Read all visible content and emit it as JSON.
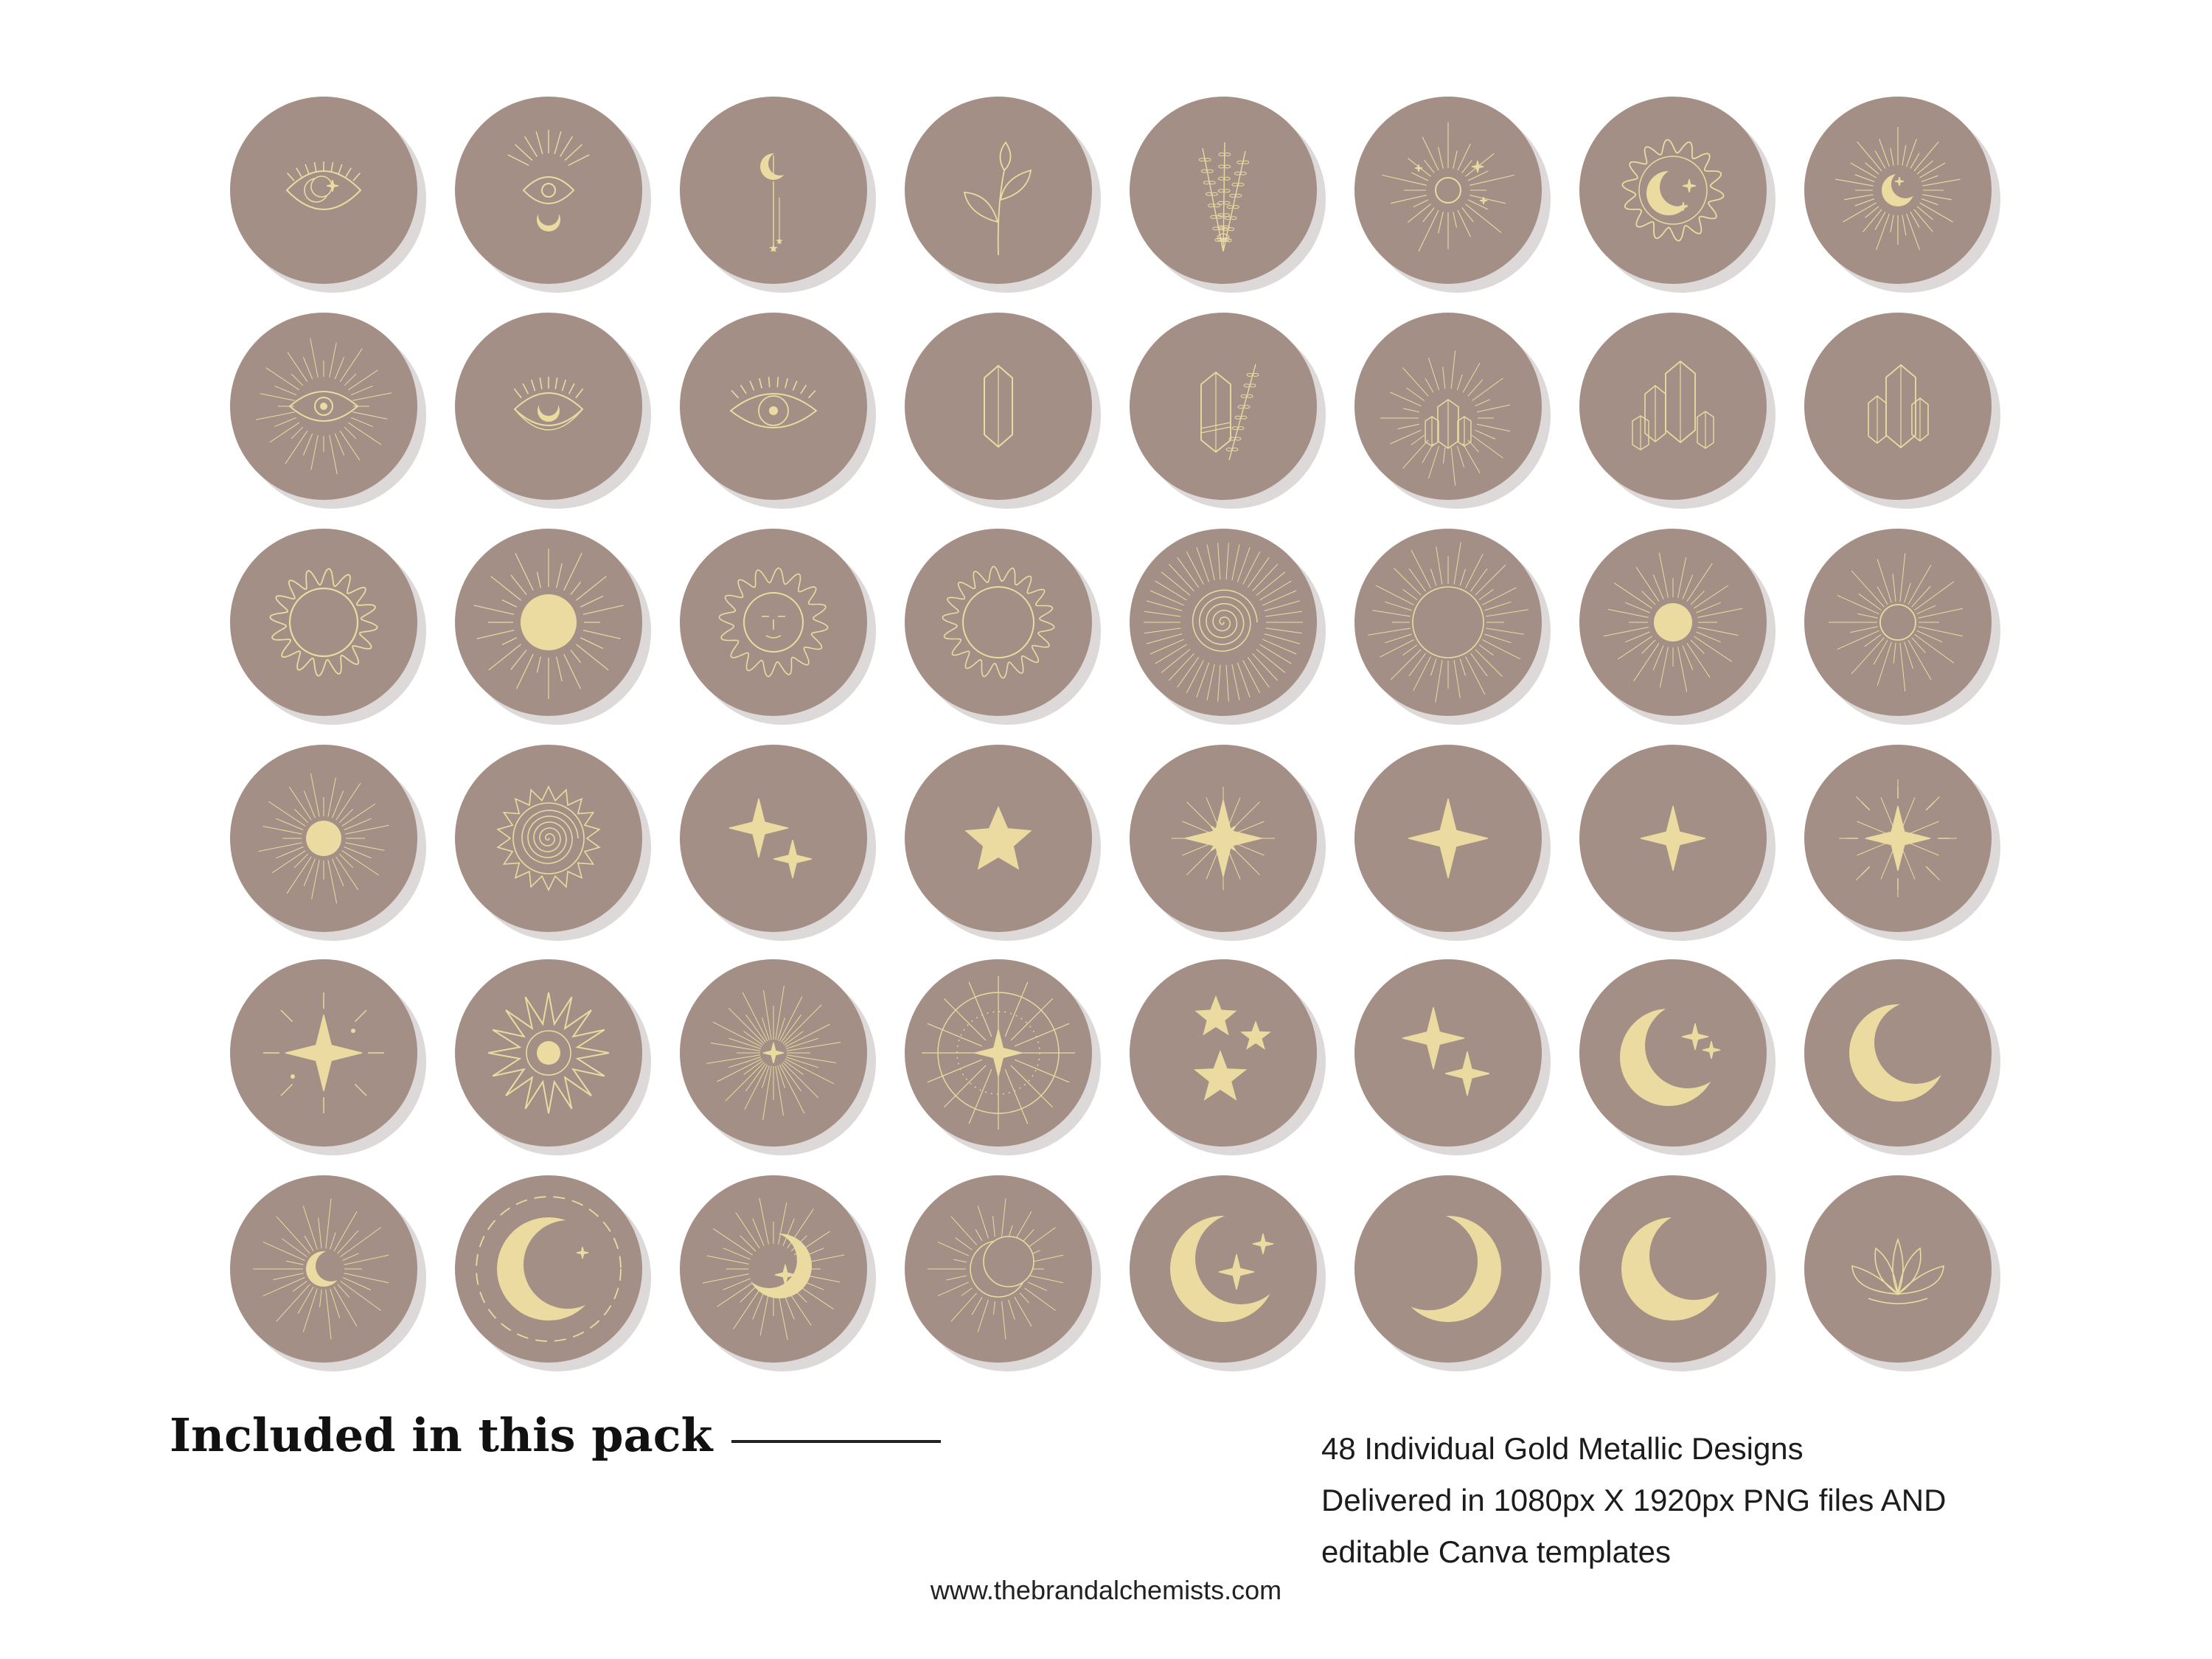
{
  "colors": {
    "badge": "#a48f86",
    "shadow": "#dcd9d8",
    "gold": "#ecdba0",
    "text": "#111111",
    "background": "#ffffff"
  },
  "icons": [
    "eye-crescent-icon",
    "eye-crown-rays-icon",
    "hanging-crescent-icon",
    "sprout-icon",
    "lavender-bundle-icon",
    "rayed-sun-stars-icon",
    "flaming-sun-crescent-icon",
    "rayed-crescent-icon",
    "rayed-eye-icon",
    "eye-crescent-pupil-icon",
    "eye-lashes-icon",
    "single-crystal-icon",
    "crystal-lavender-icon",
    "rayed-crystal-icon",
    "crystal-cluster-icon",
    "crystal-pair-icon",
    "flaming-sun-ring-icon",
    "solid-sun-rays-icon",
    "sun-face-icon",
    "flaming-sun-icon",
    "spiral-sun-rays-icon",
    "sun-ring-rays-icon",
    "small-sun-rays-icon",
    "dotted-sun-rays-icon",
    "small-sun-icon",
    "spiral-wavy-sun-icon",
    "two-sparkles-icon",
    "five-point-star-icon",
    "eight-point-star-icon",
    "four-point-sparkle-icon",
    "four-point-sparkle-small-icon",
    "sparkle-rays-icon",
    "sparkle-accent-icon",
    "spiky-sun-star-icon",
    "radiant-sparkle-icon",
    "compass-star-icon",
    "three-stars-icon",
    "two-sparkles-small-icon",
    "crescent-sparkles-icon",
    "large-crescent-icon",
    "crescent-rays-icon",
    "crescent-dashed-ring-icon",
    "crescent-sparkle-rays-icon",
    "crescent-rays-arc-icon",
    "crescent-star-icon",
    "crescent-moon-icon",
    "thin-crescent-icon",
    "lotus-icon"
  ],
  "heading": "Included in this pack",
  "details": [
    "48 Individual Gold Metallic Designs",
    "Delivered in 1080px X 1920px PNG files AND",
    "editable Canva templates"
  ],
  "website": "www.thebrandalchemists.com"
}
